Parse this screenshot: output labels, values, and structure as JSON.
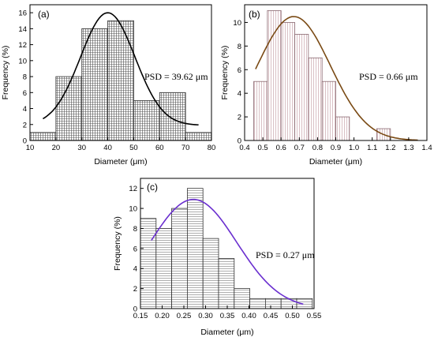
{
  "chart_data": [
    {
      "type": "bar",
      "panel_label": "(a)",
      "xlabel": "Diameter (μm)",
      "ylabel": "Frequency (%)",
      "xlim": [
        10,
        80
      ],
      "ylim": [
        0,
        17
      ],
      "xticks": [
        10,
        20,
        30,
        40,
        50,
        60,
        70,
        80
      ],
      "yticks": [
        0,
        2,
        4,
        6,
        8,
        10,
        12,
        14,
        16
      ],
      "bin_edges": [
        10,
        20,
        30,
        40,
        50,
        60,
        70,
        80
      ],
      "values": [
        1,
        8,
        14,
        15,
        5,
        6,
        1
      ],
      "hatch": "grid",
      "fit_curve": {
        "type": "gaussian",
        "mean": 40,
        "peak": 16.0,
        "sigma": 10.5,
        "offset": 1.9,
        "x_range": [
          15,
          75
        ],
        "color": "#000000"
      },
      "annotation": "PSD = 39.62 μm"
    },
    {
      "type": "bar",
      "panel_label": "(b)",
      "xlabel": "Diameter (μm)",
      "ylabel": "Frequency (%)",
      "xlim": [
        0.4,
        1.4
      ],
      "ylim": [
        0,
        11.5
      ],
      "xticks": [
        0.4,
        0.5,
        0.6,
        0.7,
        0.8,
        0.9,
        1.0,
        1.1,
        1.2,
        1.3,
        1.4
      ],
      "yticks": [
        0,
        2,
        4,
        6,
        8,
        10
      ],
      "bin_edges": [
        0.45,
        0.525,
        0.6,
        0.675,
        0.75,
        0.825,
        0.9,
        0.975,
        1.05,
        1.125,
        1.2,
        1.275
      ],
      "values": [
        5,
        11,
        10,
        9,
        7,
        5,
        2,
        0,
        0,
        1,
        0
      ],
      "hatch": "vertical",
      "fit_curve": {
        "type": "gaussian",
        "mean": 0.67,
        "peak": 10.5,
        "sigma": 0.2,
        "offset": 0,
        "x_range": [
          0.46,
          1.35
        ],
        "color": "#7a4a14"
      },
      "annotation": "PSD = 0.66 μm"
    },
    {
      "type": "bar",
      "panel_label": "(c)",
      "xlabel": "Diameter (μm)",
      "ylabel": "Frequency (%)",
      "xlim": [
        0.15,
        0.55
      ],
      "ylim": [
        0,
        13
      ],
      "xticks": [
        0.15,
        0.2,
        0.25,
        0.3,
        0.35,
        0.4,
        0.45,
        0.5,
        0.55
      ],
      "yticks": [
        0,
        2,
        4,
        6,
        8,
        10,
        12
      ],
      "bin_edges": [
        0.15,
        0.186,
        0.222,
        0.258,
        0.294,
        0.33,
        0.366,
        0.402,
        0.438,
        0.474,
        0.51,
        0.546
      ],
      "values": [
        9,
        8,
        10,
        12,
        7,
        5,
        2,
        1,
        1,
        1,
        1
      ],
      "hatch": "horizontal",
      "fit_curve": {
        "type": "gaussian",
        "mean": 0.272,
        "peak": 10.9,
        "sigma": 0.1,
        "offset": 0,
        "x_range": [
          0.175,
          0.525
        ],
        "color": "#6a2fcf"
      },
      "annotation": "PSD = 0.27 μm"
    }
  ]
}
